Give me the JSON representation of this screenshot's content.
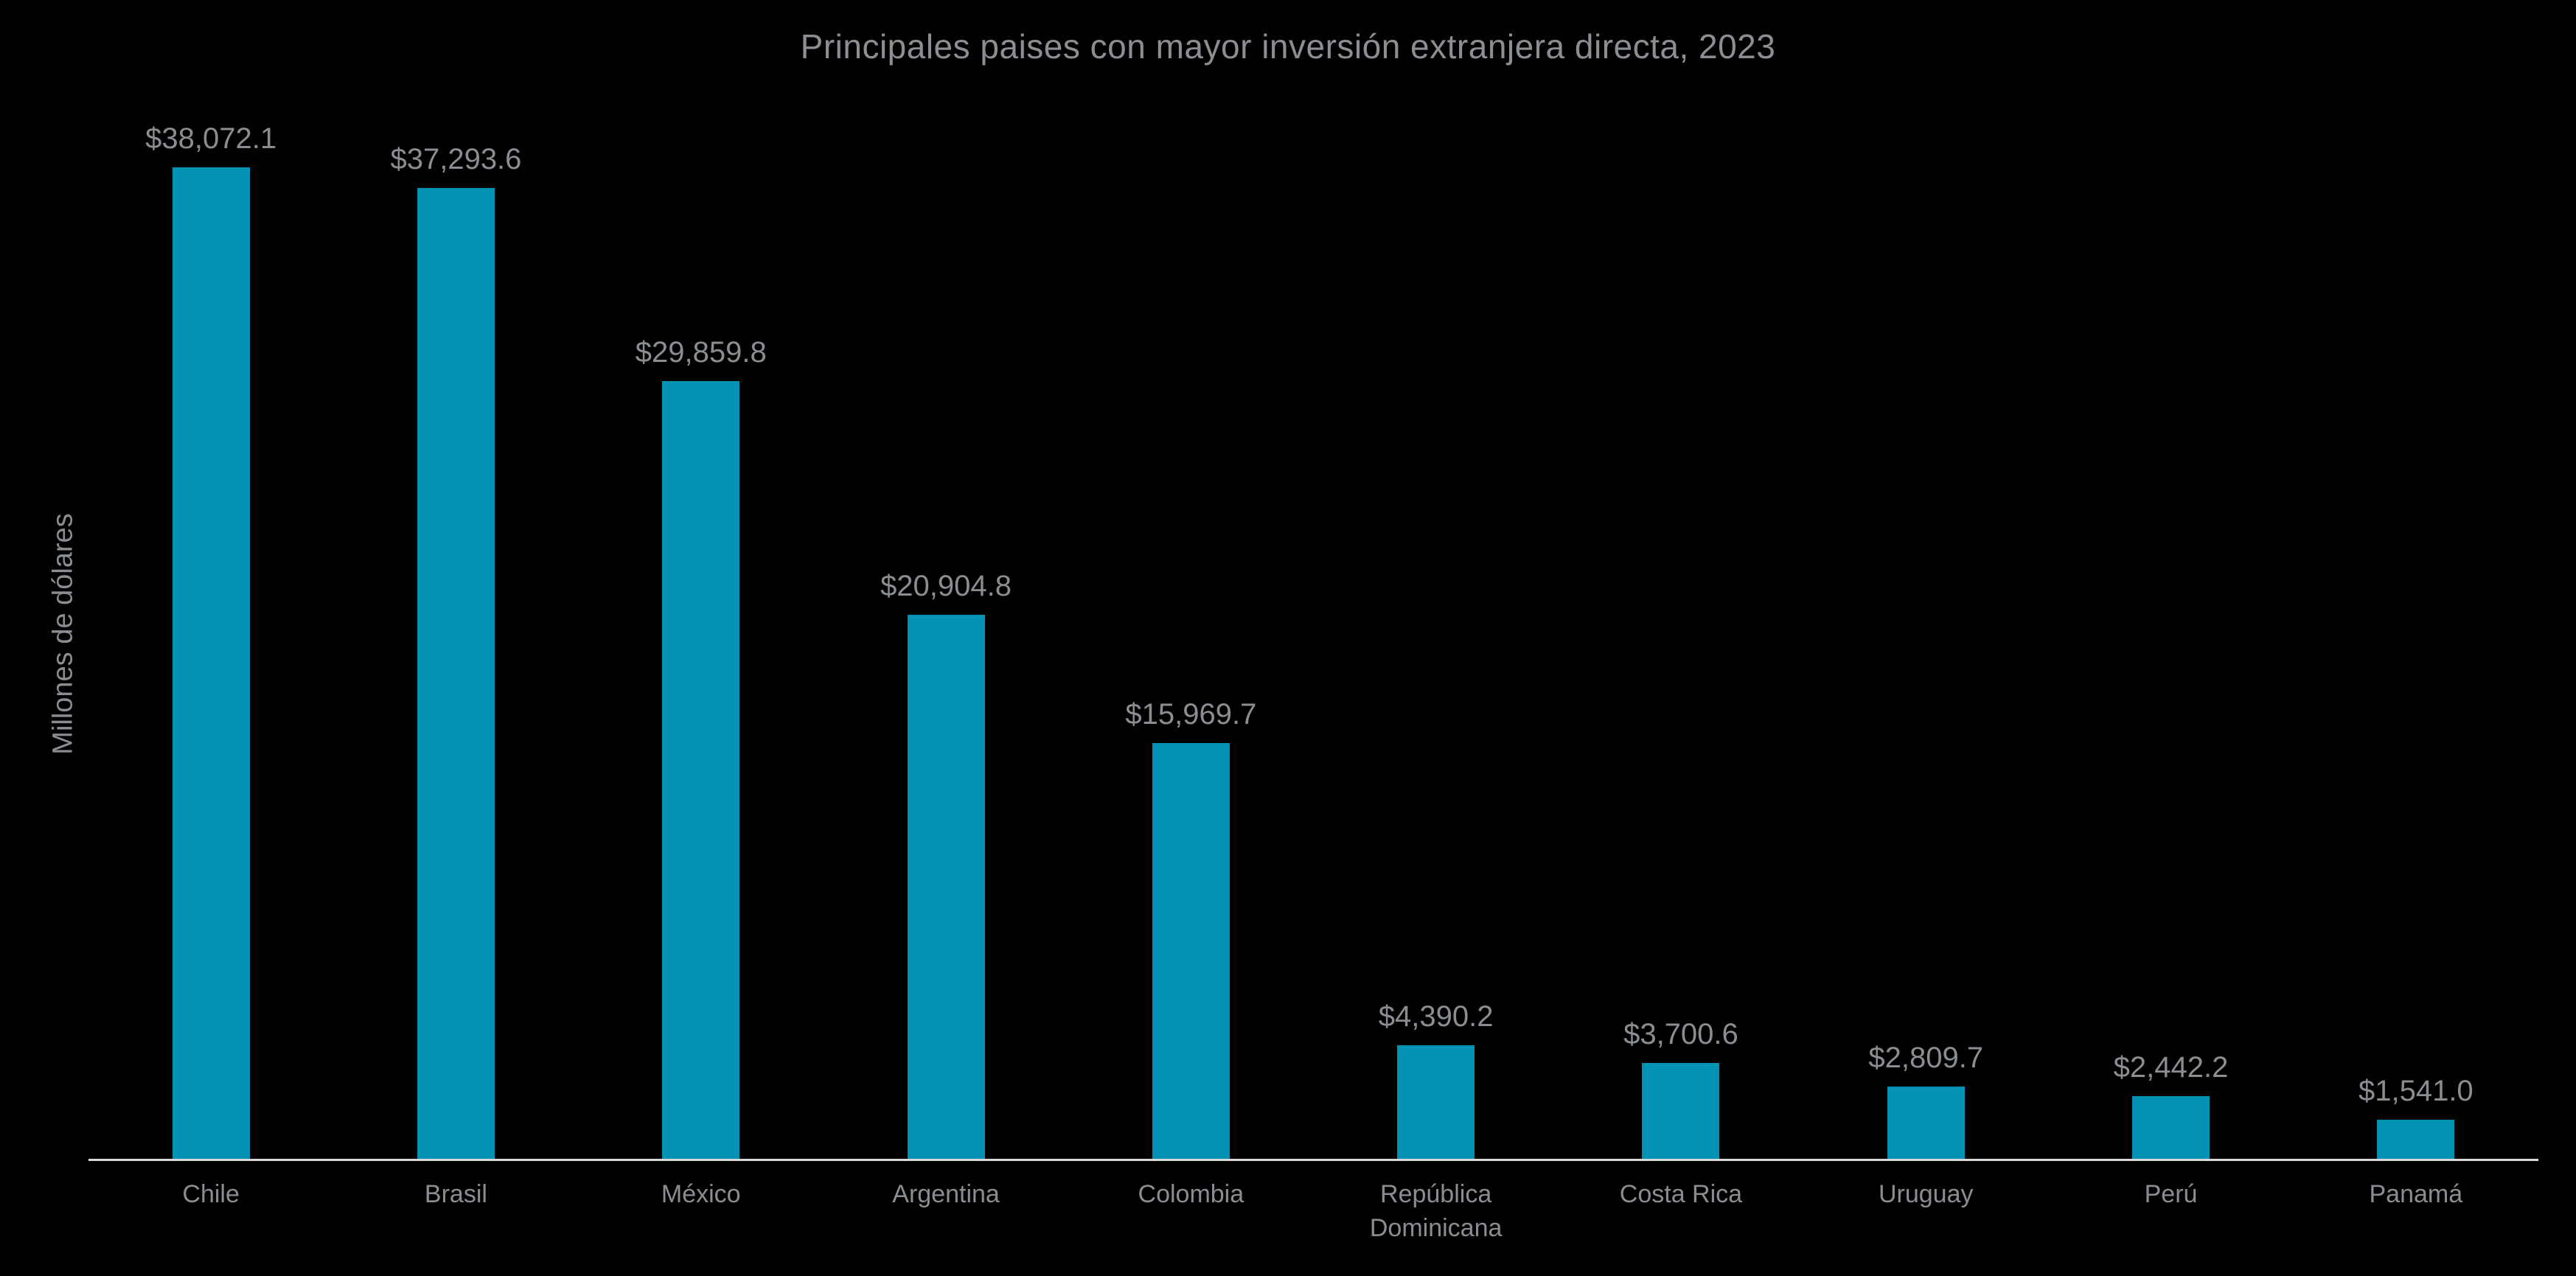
{
  "title": "Principales paises con mayor inversión extranjera directa, 2023",
  "colors": {
    "background": "#000000",
    "bar": "#0292B4",
    "text_gray": "#8A8E93",
    "axis_line": "#D9D9D9"
  },
  "chart_data": {
    "type": "bar",
    "title": "Principales paises con mayor inversión extranjera directa, 2023",
    "xlabel": "",
    "ylabel": "Millones de dólares",
    "categories": [
      "Chile",
      "Brasil",
      "México",
      "Argentina",
      "Colombia",
      "República Dominicana",
      "Costa Rica",
      "Uruguay",
      "Perú",
      "Panamá"
    ],
    "values": [
      38072.1,
      37293.6,
      29859.8,
      20904.8,
      15969.7,
      4390.2,
      3700.6,
      2809.7,
      2442.2,
      1541.0
    ],
    "value_labels": [
      "$38,072.1",
      "$37,293.6",
      "$29,859.8",
      "$20,904.8",
      "$15,969.7",
      "$4,390.2",
      "$3,700.6",
      "$2,809.7",
      "$2,442.2",
      "$1,541.0"
    ],
    "ylim": [
      0,
      40000
    ],
    "grid": false,
    "legend": "none",
    "bar_color": "#0292B4",
    "background": "#000000",
    "unit": "Millones de dólares (USD)"
  }
}
